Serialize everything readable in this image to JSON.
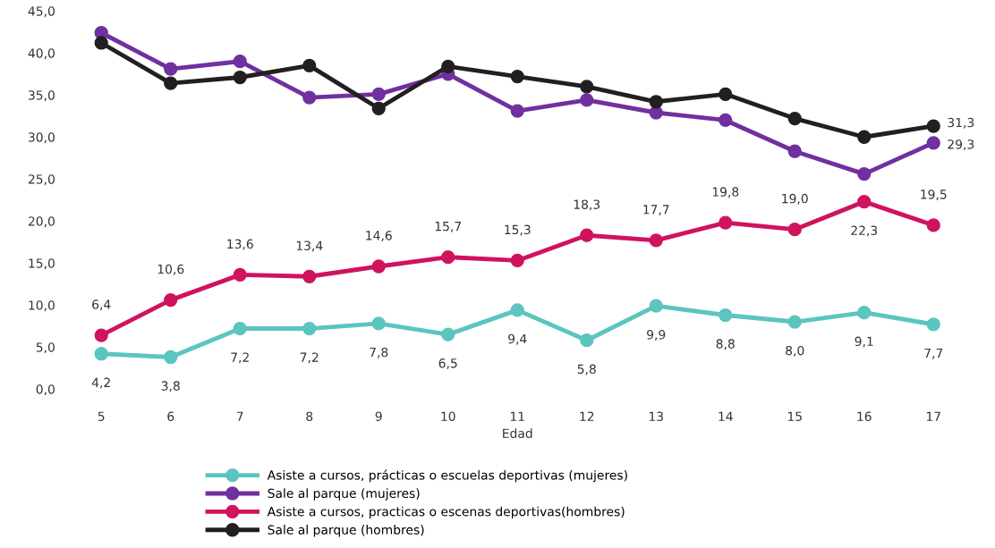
{
  "chart_data": {
    "type": "line",
    "xlabel": "Edad",
    "categories": [
      "5",
      "6",
      "7",
      "8",
      "9",
      "10",
      "11",
      "12",
      "13",
      "14",
      "15",
      "16",
      "17"
    ],
    "ylim": [
      0,
      45
    ],
    "yticks": [
      {
        "value": 0,
        "label": "0,0"
      },
      {
        "value": 5,
        "label": "5,0"
      },
      {
        "value": 10,
        "label": "10,0"
      },
      {
        "value": 15,
        "label": "15,0"
      },
      {
        "value": 20,
        "label": "20,0"
      },
      {
        "value": 25,
        "label": "25,0"
      },
      {
        "value": 30,
        "label": "30,0"
      },
      {
        "value": 35,
        "label": "35,0"
      },
      {
        "value": 40,
        "label": "40,0"
      },
      {
        "value": 45,
        "label": "45,0"
      }
    ],
    "grid": false,
    "legend": "bottom",
    "marker": "circle",
    "line_style": "solid",
    "series": [
      {
        "name": "Asiste a cursos, prácticas o escuelas deportivas (mujeres)",
        "color": "#5bc5bf",
        "values": [
          4.2,
          3.8,
          7.2,
          7.2,
          7.8,
          6.5,
          9.4,
          5.8,
          9.9,
          8.8,
          8.0,
          9.1,
          7.7
        ],
        "value_labels": [
          "4,2",
          "3,8",
          "7,2",
          "7,2",
          "7,8",
          "6,5",
          "9,4",
          "5,8",
          "9,9",
          "8,8",
          "8,0",
          "9,1",
          "7,7"
        ]
      },
      {
        "name": "Sale al parque (mujeres)",
        "color": "#7030a0",
        "values": [
          42.4,
          38.1,
          39.0,
          34.7,
          35.1,
          37.5,
          33.1,
          34.4,
          32.9,
          32.0,
          28.3,
          25.6,
          29.3
        ],
        "value_labels": [
          null,
          null,
          null,
          null,
          null,
          null,
          null,
          null,
          null,
          null,
          null,
          null,
          "29,3"
        ]
      },
      {
        "name": "Asiste a cursos, practicas o escenas deportivas(hombres)",
        "color": "#d0135f",
        "values": [
          6.4,
          10.6,
          13.6,
          13.4,
          14.6,
          15.7,
          15.3,
          18.3,
          17.7,
          19.8,
          19.0,
          22.3,
          19.5
        ],
        "value_labels": [
          "6,4",
          "10,6",
          "13,6",
          "13,4",
          "14,6",
          "15,7",
          "15,3",
          "18,3",
          "17,7",
          "19,8",
          "19,0",
          "22,3",
          "19,5"
        ]
      },
      {
        "name": "Sale al parque (hombres)",
        "color": "#231f20",
        "values": [
          41.2,
          36.4,
          37.1,
          38.5,
          33.4,
          38.4,
          37.2,
          36.0,
          34.2,
          35.1,
          32.2,
          30.0,
          31.3
        ],
        "value_labels": [
          null,
          null,
          null,
          null,
          null,
          null,
          null,
          null,
          null,
          null,
          null,
          null,
          "31,3"
        ]
      }
    ]
  }
}
